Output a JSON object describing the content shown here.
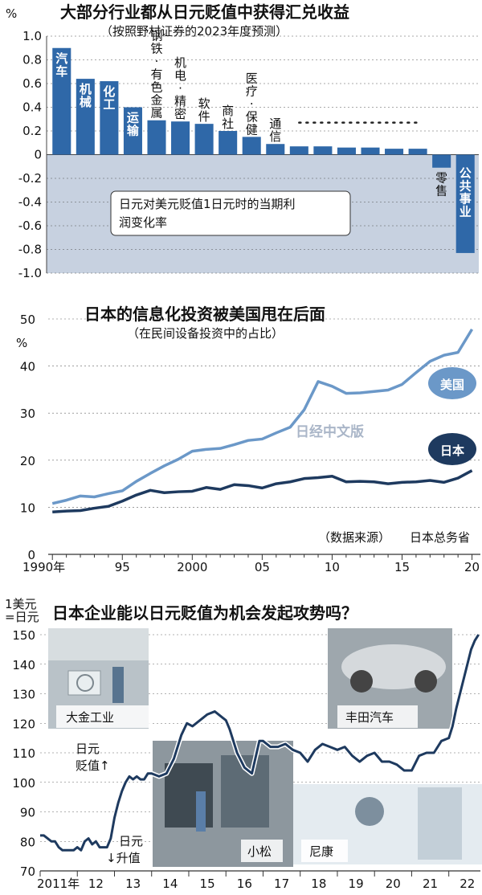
{
  "charts": [
    {
      "title": "大部分行业都从日元贬值中获得汇兑收益",
      "subtitle": "（按照野村证券的2023年度预测）",
      "ylabel": "%",
      "note": "日元对美元贬值1日元时的当期利润变化率"
    },
    {
      "title": "日本的信息化投资被美国甩在后面",
      "subtitle": "（在民间设备投资中的占比）",
      "ylabel": "%",
      "source_label": "（数据来源）",
      "source": "日本总务省",
      "watermark": "日经中文版"
    },
    {
      "title": "日本企业能以日元贬值为机会发起攻势吗？",
      "ylabel_top": "1美元",
      "ylabel_bottom": "=日元",
      "annotation_weak": "日元贬值↑",
      "annotation_weak_1": "日元",
      "annotation_weak_2": "贬值↑",
      "annotation_strong_1": "日元",
      "annotation_strong_2": "↓升值",
      "photos": [
        {
          "caption": "大金工业"
        },
        {
          "caption": "小松"
        },
        {
          "caption": "尼康"
        },
        {
          "caption": "丰田汽车"
        }
      ]
    }
  ],
  "chart_data": [
    {
      "type": "bar",
      "categories": [
        "汽车",
        "机械",
        "化工",
        "运输",
        "钢铁·有色金属",
        "机电·精密",
        "软件",
        "商社",
        "医疗·保健",
        "通信",
        "",
        "",
        "",
        "",
        "",
        "",
        "零售",
        "公共事业"
      ],
      "values": [
        0.9,
        0.64,
        0.62,
        0.4,
        0.29,
        0.28,
        0.26,
        0.2,
        0.15,
        0.09,
        0.07,
        0.07,
        0.06,
        0.06,
        0.05,
        0.05,
        -0.11,
        -0.83
      ],
      "ylim": [
        -1.0,
        1.0
      ],
      "yticks": [
        "1.0",
        "0.8",
        "0.6",
        "0.4",
        "0.2",
        "0",
        "-0.2",
        "-0.4",
        "-0.6",
        "-0.8",
        "-1.0"
      ],
      "ytick_values": [
        1.0,
        0.8,
        0.6,
        0.4,
        0.2,
        0,
        -0.2,
        -0.4,
        -0.6,
        -0.8,
        -1.0
      ],
      "colors": {
        "bar": "#2f68a8",
        "negative_bg": "#c7d1e0"
      }
    },
    {
      "type": "line",
      "x": [
        1990,
        1991,
        1992,
        1993,
        1994,
        1995,
        1996,
        1997,
        1998,
        1999,
        2000,
        2001,
        2002,
        2003,
        2004,
        2005,
        2006,
        2007,
        2008,
        2009,
        2010,
        2011,
        2012,
        2013,
        2014,
        2015,
        2016,
        2017,
        2018,
        2019,
        2020
      ],
      "series": [
        {
          "name": "美国",
          "color": "#6b98c8",
          "values": [
            10.8,
            11.5,
            12.4,
            12.2,
            12.9,
            13.5,
            15.5,
            17.2,
            18.8,
            20.2,
            21.9,
            22.3,
            22.5,
            23.3,
            24.2,
            24.5,
            25.8,
            27.0,
            30.7,
            36.7,
            35.7,
            34.2,
            34.3,
            34.6,
            34.9,
            36.1,
            38.6,
            41.0,
            42.3,
            42.9,
            47.8
          ]
        },
        {
          "name": "日本",
          "color": "#1e3a5f",
          "values": [
            9.0,
            9.2,
            9.3,
            9.8,
            10.2,
            11.3,
            12.6,
            13.6,
            13.1,
            13.3,
            13.4,
            14.2,
            13.8,
            14.8,
            14.6,
            14.1,
            15.0,
            15.4,
            16.1,
            16.3,
            16.6,
            15.4,
            15.5,
            15.4,
            15.0,
            15.3,
            15.4,
            15.7,
            15.3,
            16.2,
            17.8
          ]
        }
      ],
      "xticks": [
        "1990年",
        "95",
        "2000",
        "05",
        "10",
        "15",
        "20"
      ],
      "xtick_values": [
        1990,
        1995,
        2000,
        2005,
        2010,
        2015,
        2020
      ],
      "ylim": [
        0,
        50
      ],
      "yticks": [
        "50",
        "40",
        "30",
        "20",
        "10",
        "0"
      ],
      "ytick_values": [
        50,
        40,
        30,
        20,
        10,
        0
      ]
    },
    {
      "type": "line",
      "x": [
        2011.0,
        2011.1,
        2011.2,
        2011.3,
        2011.4,
        2011.5,
        2011.6,
        2011.7,
        2011.8,
        2011.9,
        2012.0,
        2012.1,
        2012.2,
        2012.3,
        2012.4,
        2012.5,
        2012.6,
        2012.7,
        2012.8,
        2012.9,
        2013.0,
        2013.1,
        2013.2,
        2013.3,
        2013.4,
        2013.5,
        2013.6,
        2013.7,
        2013.8,
        2013.9,
        2014.0,
        2014.2,
        2014.4,
        2014.6,
        2014.8,
        2014.95,
        2015.1,
        2015.3,
        2015.5,
        2015.7,
        2015.9,
        2016.0,
        2016.1,
        2016.3,
        2016.5,
        2016.7,
        2016.9,
        2017.0,
        2017.2,
        2017.4,
        2017.6,
        2017.8,
        2018.0,
        2018.2,
        2018.4,
        2018.6,
        2018.8,
        2019.0,
        2019.2,
        2019.4,
        2019.6,
        2019.8,
        2020.0,
        2020.2,
        2020.4,
        2020.6,
        2020.8,
        2021.0,
        2021.2,
        2021.4,
        2021.6,
        2021.8,
        2022.0,
        2022.1,
        2022.2,
        2022.3,
        2022.4,
        2022.5,
        2022.6,
        2022.7,
        2022.8
      ],
      "series": [
        {
          "name": "",
          "color": "#1e3a5f",
          "values": [
            82,
            82,
            81,
            80,
            80,
            78,
            77,
            77,
            77,
            77,
            78,
            77,
            80,
            81,
            79,
            80,
            78,
            78,
            78,
            81,
            88,
            93,
            97,
            100,
            102,
            101,
            102,
            101,
            101,
            103,
            103,
            102,
            103,
            108,
            116,
            120,
            119,
            121,
            123,
            124,
            122,
            121,
            118,
            110,
            105,
            103,
            114,
            114,
            112,
            112,
            113,
            111,
            110,
            107,
            111,
            113,
            112,
            111,
            112,
            109,
            107,
            109,
            110,
            107,
            107,
            106,
            104,
            104,
            109,
            110,
            110,
            114,
            115,
            119,
            125,
            130,
            135,
            140,
            145,
            148,
            150
          ]
        }
      ],
      "xticks": [
        "2011年",
        "12",
        "13",
        "14",
        "15",
        "16",
        "17",
        "18",
        "19",
        "20",
        "21",
        "22"
      ],
      "xtick_values": [
        2011.5,
        2012.5,
        2013.5,
        2014.5,
        2015.5,
        2016.5,
        2017.5,
        2018.5,
        2019.5,
        2020.5,
        2021.5,
        2022.5
      ],
      "ylim": [
        70,
        150
      ],
      "yticks": [
        "150",
        "140",
        "130",
        "120",
        "110",
        "100",
        "90",
        "80",
        "70"
      ],
      "ytick_values": [
        150,
        140,
        130,
        120,
        110,
        100,
        90,
        80,
        70
      ]
    }
  ]
}
